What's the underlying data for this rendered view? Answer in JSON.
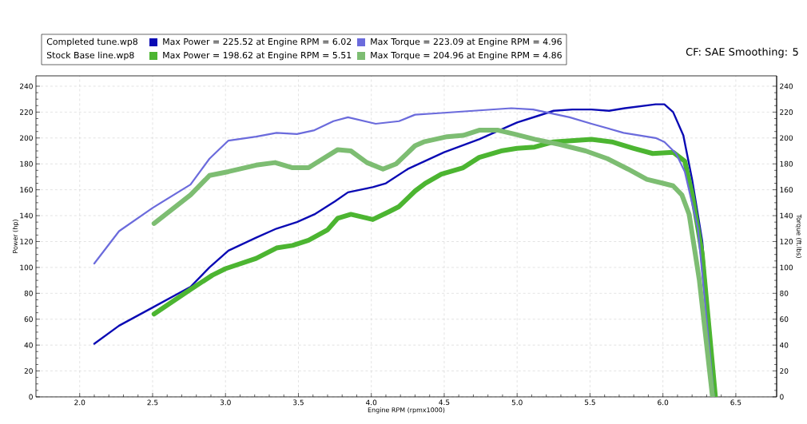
{
  "chart_data": {
    "type": "line",
    "subtitle": "CF: SAE Smoothing: 5",
    "xlabel": "Engine RPM (rpmx1000)",
    "ylabel": "Power (hp)",
    "y2label": "Torque (ft.lbs)",
    "annotations": [
      "Completed tune.wp8",
      "Stock Base line.wp8"
    ],
    "xlim": [
      1.7,
      6.78
    ],
    "ylim": [
      0,
      248
    ],
    "y2lim": [
      0,
      248
    ],
    "xticks": [
      {
        "value": 2,
        "label": "2.0"
      },
      {
        "value": 2.5,
        "label": "2.5"
      },
      {
        "value": 3,
        "label": "3.0"
      },
      {
        "value": 3.5,
        "label": "3.5"
      },
      {
        "value": 4,
        "label": "4.0"
      },
      {
        "value": 4.5,
        "label": "4.5"
      },
      {
        "value": 5,
        "label": "5.0"
      },
      {
        "value": 5.5,
        "label": "5.5"
      },
      {
        "value": 6,
        "label": "6.0"
      },
      {
        "value": 6.5,
        "label": "6.5"
      }
    ],
    "yticks": [
      0,
      20,
      40,
      60,
      80,
      100,
      120,
      140,
      160,
      180,
      200,
      220,
      240
    ],
    "y2ticks": [
      0,
      20,
      40,
      60,
      80,
      100,
      120,
      140,
      160,
      180,
      200,
      220,
      240
    ],
    "grid": true,
    "legend": "top left",
    "series": [
      {
        "name": "Max Power = 225.52 at Engine RPM = 6.02",
        "color": "#0a0ab4",
        "x": [
          2.1,
          2.27,
          2.5,
          2.76,
          2.89,
          3.02,
          3.21,
          3.35,
          3.49,
          3.61,
          3.75,
          3.84,
          4.01,
          4.1,
          4.25,
          4.5,
          4.74,
          5.0,
          5.14,
          5.25,
          5.38,
          5.51,
          5.63,
          5.74,
          5.95,
          6.01,
          6.07,
          6.14,
          6.2,
          6.27,
          6.36
        ],
        "values": [
          41,
          55,
          69,
          85,
          100,
          113,
          123,
          130,
          135,
          141,
          151,
          158,
          162,
          165,
          176,
          189,
          199,
          212,
          217,
          221,
          222,
          222,
          221,
          223,
          226,
          226,
          220,
          202,
          168,
          120,
          0
        ]
      },
      {
        "name": "Max Power = 198.62 at Engine RPM = 5.51",
        "color": "#4cb531",
        "x": [
          2.51,
          2.76,
          2.91,
          3.0,
          3.21,
          3.35,
          3.46,
          3.57,
          3.7,
          3.77,
          3.86,
          4.01,
          4.12,
          4.19,
          4.3,
          4.37,
          4.48,
          4.63,
          4.74,
          4.89,
          5.0,
          5.12,
          5.25,
          5.38,
          5.51,
          5.65,
          5.8,
          5.93,
          6.07,
          6.15,
          6.2,
          6.27,
          6.36
        ],
        "values": [
          64,
          83,
          94,
          99,
          107,
          115,
          117,
          121,
          129,
          138,
          141,
          137,
          143,
          147,
          159,
          165,
          172,
          177,
          185,
          190,
          192,
          193,
          197,
          198,
          199,
          197,
          192,
          188,
          189,
          182,
          157,
          110,
          0
        ]
      },
      {
        "name": "Max Torque = 223.09 at Engine RPM = 4.96",
        "color": "#6b6bdc",
        "axis": "y2",
        "x": [
          2.1,
          2.27,
          2.5,
          2.76,
          2.89,
          3.02,
          3.21,
          3.35,
          3.49,
          3.61,
          3.74,
          3.84,
          4.03,
          4.19,
          4.3,
          4.44,
          4.96,
          5.11,
          5.36,
          5.51,
          5.73,
          5.95,
          6.01,
          6.09,
          6.15,
          6.24,
          6.35
        ],
        "values": [
          103,
          128,
          146,
          164,
          184,
          198,
          201,
          204,
          203,
          206,
          213,
          216,
          211,
          213,
          218,
          219,
          223,
          222,
          216,
          211,
          204,
          200,
          197,
          188,
          174,
          130,
          0
        ]
      },
      {
        "name": "Max Torque = 204.96 at Engine RPM = 4.86",
        "color": "#7dbd72",
        "axis": "y2",
        "x": [
          2.51,
          2.76,
          2.89,
          3.02,
          3.21,
          3.34,
          3.46,
          3.57,
          3.64,
          3.77,
          3.86,
          3.97,
          4.08,
          4.17,
          4.3,
          4.36,
          4.52,
          4.63,
          4.74,
          4.87,
          4.98,
          5.12,
          5.29,
          5.47,
          5.62,
          5.76,
          5.89,
          6.0,
          6.07,
          6.13,
          6.18,
          6.25,
          6.34
        ],
        "values": [
          134,
          156,
          171,
          174,
          179,
          181,
          177,
          177,
          182,
          191,
          190,
          181,
          176,
          180,
          194,
          197,
          201,
          202,
          206,
          206,
          203,
          199,
          195,
          190,
          184,
          176,
          168,
          165,
          163,
          156,
          141,
          90,
          0
        ]
      }
    ]
  }
}
